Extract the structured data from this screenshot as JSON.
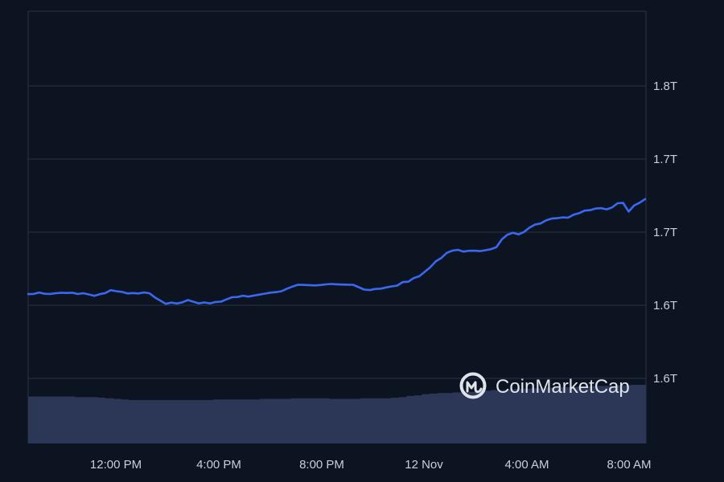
{
  "watermark": {
    "brand": "CoinMarketCap"
  },
  "colors": {
    "background": "#0d1421",
    "grid": "#2b3446",
    "line": "#3c67f0",
    "volume": "#2c3657",
    "text": "#c9cfd9"
  },
  "chart_data": {
    "type": "line",
    "title": "",
    "xlabel": "",
    "ylabel": "",
    "x_tick_labels": [
      "12:00 PM",
      "4:00 PM",
      "8:00 PM",
      "12 Nov",
      "4:00 AM",
      "8:00 AM"
    ],
    "y_tick_labels": [
      "1.8T",
      "1.7T",
      "1.7T",
      "1.6T",
      "1.6T"
    ],
    "grid": true,
    "y_axis_position": "right",
    "series": [
      {
        "values": [
          1.6153,
          1.6155,
          1.6175,
          1.6157,
          1.6155,
          1.6165,
          1.6172,
          1.6168,
          1.6172,
          1.6154,
          1.6165,
          1.6148,
          1.6129,
          1.6152,
          1.6167,
          1.6207,
          1.6192,
          1.6184,
          1.6162,
          1.6167,
          1.6162,
          1.6175,
          1.6165,
          1.6108,
          1.6064,
          1.602,
          1.6037,
          1.6024,
          1.6041,
          1.6072,
          1.6048,
          1.6025,
          1.6038,
          1.6025,
          1.6045,
          1.6049,
          1.608,
          1.611,
          1.6113,
          1.6131,
          1.6119,
          1.6133,
          1.6146,
          1.6159,
          1.6173,
          1.618,
          1.6193,
          1.6228,
          1.6256,
          1.6282,
          1.6278,
          1.6276,
          1.6272,
          1.6277,
          1.6286,
          1.6291,
          1.6287,
          1.6284,
          1.6282,
          1.628,
          1.6248,
          1.6215,
          1.6208,
          1.6223,
          1.6228,
          1.6244,
          1.6259,
          1.6269,
          1.6318,
          1.6322,
          1.6373,
          1.6397,
          1.646,
          1.6522,
          1.6603,
          1.6648,
          1.6718,
          1.6748,
          1.6759,
          1.6735,
          1.6746,
          1.6747,
          1.6741,
          1.6754,
          1.6768,
          1.6797,
          1.6903,
          1.6967,
          1.6992,
          1.697,
          1.7003,
          1.7063,
          1.7104,
          1.712,
          1.7162,
          1.7187,
          1.7193,
          1.7203,
          1.7199,
          1.724,
          1.7261,
          1.7296,
          1.7302,
          1.7324,
          1.733,
          1.7313,
          1.734,
          1.7397,
          1.7401,
          1.7283,
          1.7366,
          1.7405,
          1.7454
        ],
        "color": "#3c67f0"
      }
    ],
    "volume": [
      0.8,
      0.8,
      0.8,
      0.8,
      0.8,
      0.8,
      0.79,
      0.79,
      0.79,
      0.78,
      0.77,
      0.76,
      0.75,
      0.74,
      0.74,
      0.74,
      0.74,
      0.74,
      0.74,
      0.74,
      0.74,
      0.74,
      0.74,
      0.74,
      0.75,
      0.75,
      0.75,
      0.75,
      0.75,
      0.75,
      0.76,
      0.76,
      0.76,
      0.76,
      0.77,
      0.77,
      0.77,
      0.77,
      0.77,
      0.76,
      0.76,
      0.76,
      0.76,
      0.77,
      0.77,
      0.77,
      0.77,
      0.78,
      0.79,
      0.81,
      0.82,
      0.84,
      0.85,
      0.86,
      0.86,
      0.87,
      0.87,
      0.88,
      0.89,
      0.9,
      0.91,
      0.91,
      0.92,
      0.93,
      0.93,
      0.94,
      0.94,
      0.95,
      0.95,
      0.96,
      0.96,
      0.97,
      0.97,
      0.98,
      0.98,
      0.98,
      0.99,
      0.99,
      1.0,
      1.0
    ]
  }
}
